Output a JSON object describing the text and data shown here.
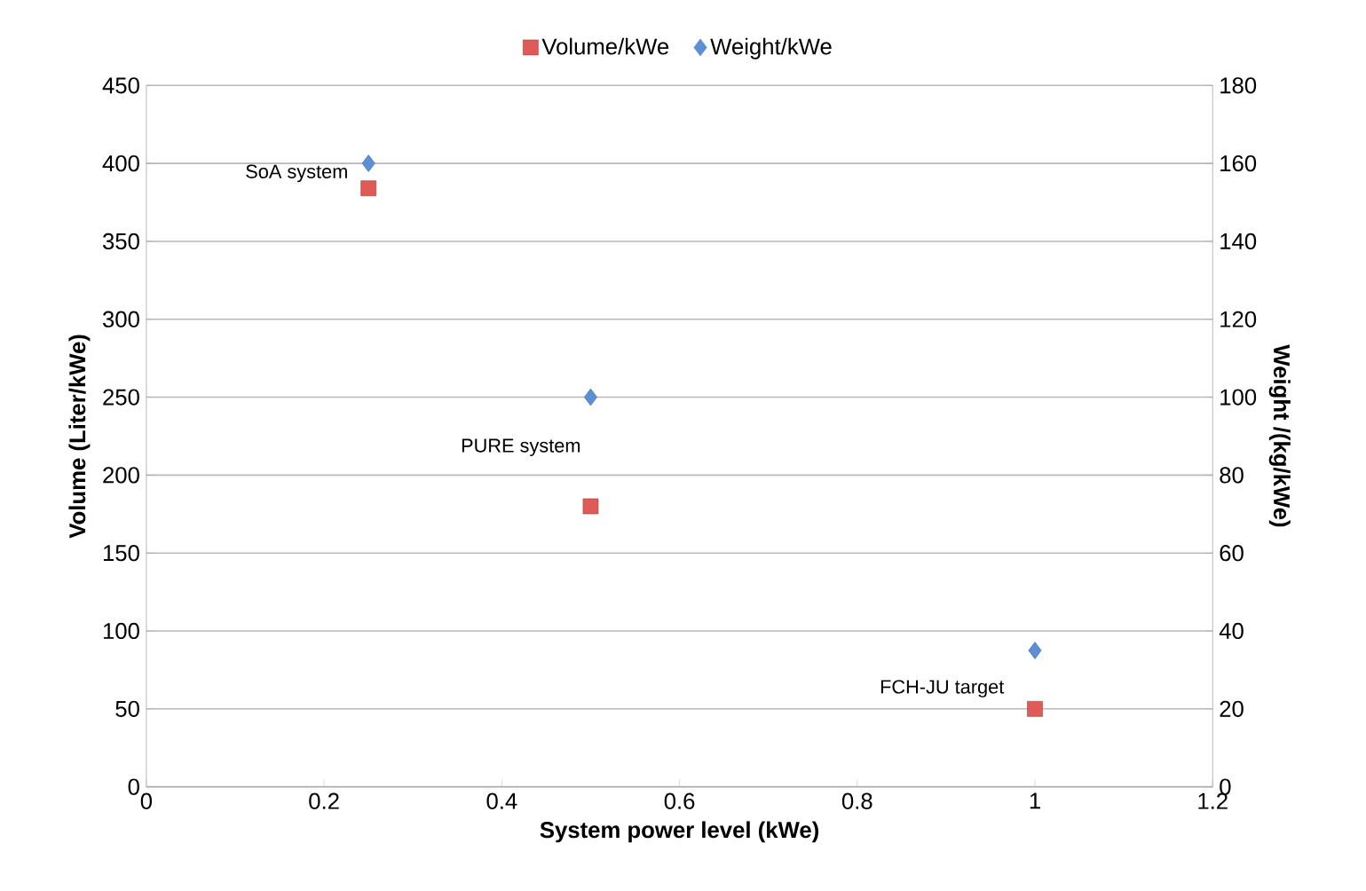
{
  "chart_data": {
    "type": "scatter",
    "xlabel": "System power level (kWe)",
    "ylabel": "Volume (Liter/kWe)",
    "y2label": "Weight /(kg/kWe)",
    "x": [
      0.25,
      0.5,
      1
    ],
    "series": [
      {
        "name": "Volume/kWe",
        "color": "#e05a58",
        "marker": "square",
        "values": [
          384,
          180,
          50
        ]
      },
      {
        "name": "Weight/kWe",
        "color": "#5b8fd6",
        "marker": "diamond",
        "axis": "y2",
        "values": [
          160,
          100,
          35
        ]
      }
    ],
    "xlim": [
      0,
      1.2
    ],
    "xticks": [
      0,
      0.2,
      0.4,
      0.6,
      0.8,
      1,
      1.2
    ],
    "ylim": [
      0,
      450
    ],
    "yticks": [
      0,
      50,
      100,
      150,
      200,
      250,
      300,
      350,
      400,
      450
    ],
    "y2lim": [
      0,
      180
    ],
    "y2ticks": [
      0,
      20,
      40,
      60,
      80,
      100,
      120,
      140,
      160,
      180
    ],
    "grid": "y",
    "legend": "top",
    "annotations": [
      {
        "text": "SoA system",
        "x": 0.25,
        "y": 384
      },
      {
        "text": "PURE system",
        "x": 0.5,
        "y": 180
      },
      {
        "text": "FCH-JU target",
        "x": 1,
        "y": 50
      }
    ]
  }
}
